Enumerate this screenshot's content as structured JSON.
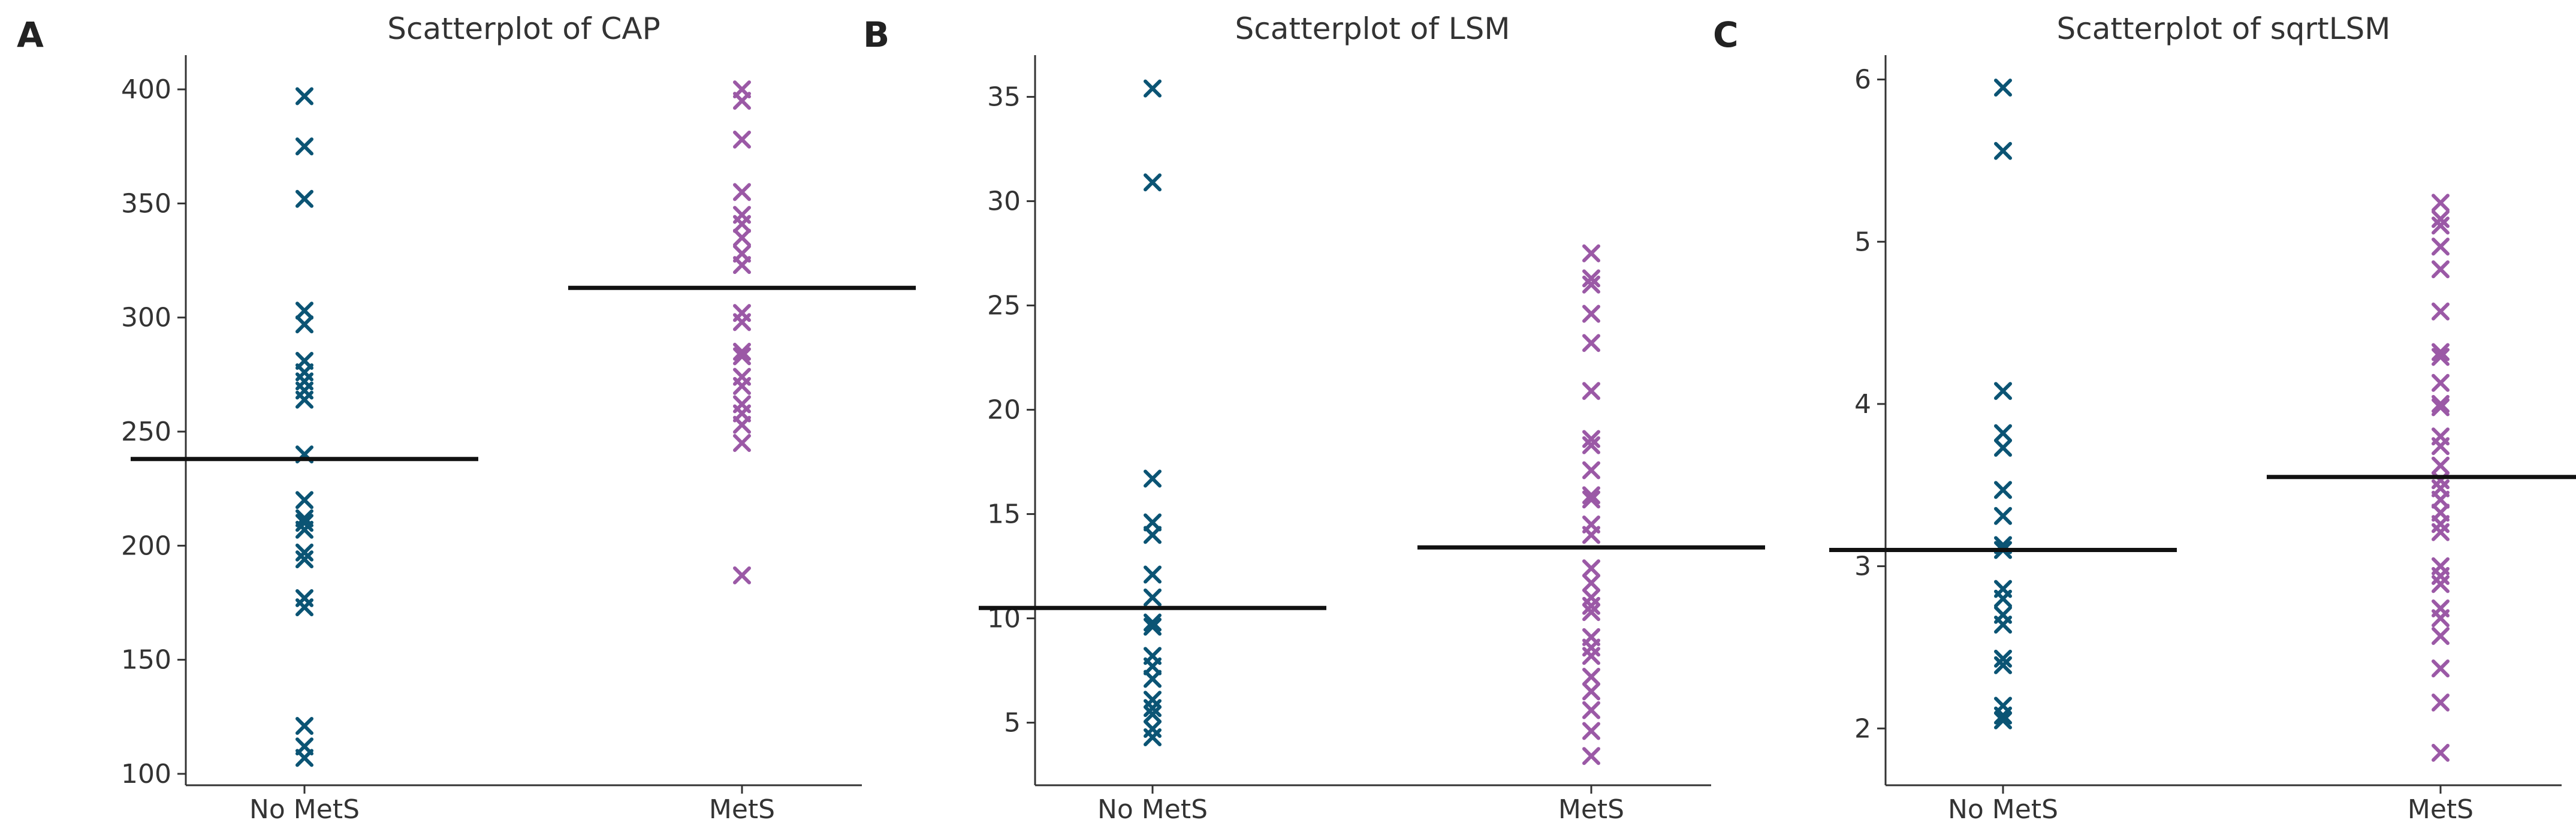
{
  "chart_data": [
    {
      "type": "scatter",
      "panel_label": "A",
      "title": "Scatterplot of CAP",
      "xlabel": "",
      "ylabel": "",
      "categories": [
        "No MetS",
        "MetS"
      ],
      "ylim": [
        95,
        415
      ],
      "yticks": [
        100,
        150,
        200,
        250,
        300,
        350,
        400
      ],
      "grid": false,
      "marker": "x",
      "series": [
        {
          "category": "No MetS",
          "color": "#0b5474",
          "values": [
            397,
            375,
            352,
            303,
            297,
            281,
            276,
            272,
            268,
            264,
            240,
            220,
            212,
            210,
            207,
            197,
            194,
            177,
            173,
            121,
            112,
            107
          ],
          "mean": 238
        },
        {
          "category": "MetS",
          "color": "#9b59a6",
          "values": [
            400,
            395,
            378,
            355,
            345,
            341,
            335,
            328,
            323,
            302,
            298,
            285,
            283,
            274,
            270,
            262,
            258,
            253,
            245,
            187
          ],
          "mean": 313
        }
      ]
    },
    {
      "type": "scatter",
      "panel_label": "B",
      "title": "Scatterplot of LSM",
      "xlabel": "",
      "ylabel": "",
      "categories": [
        "No MetS",
        "MetS"
      ],
      "ylim": [
        2,
        37
      ],
      "yticks": [
        5,
        10,
        15,
        20,
        25,
        30,
        35
      ],
      "grid": false,
      "marker": "x",
      "series": [
        {
          "category": "No MetS",
          "color": "#0b5474",
          "values": [
            35.4,
            30.9,
            16.7,
            14.6,
            14.0,
            12.1,
            11.0,
            9.8,
            9.6,
            8.2,
            7.7,
            7.1,
            6.1,
            5.7,
            5.4,
            4.7,
            4.3
          ],
          "mean": 10.5
        },
        {
          "category": "MetS",
          "color": "#9b59a6",
          "values": [
            27.5,
            26.3,
            26.0,
            24.6,
            23.2,
            20.9,
            18.6,
            18.3,
            17.1,
            15.9,
            15.7,
            14.5,
            14.0,
            12.4,
            11.7,
            11.0,
            10.6,
            10.3,
            9.1,
            8.6,
            8.2,
            7.2,
            6.5,
            5.6,
            4.6,
            3.4
          ],
          "mean": 13.4
        }
      ]
    },
    {
      "type": "scatter",
      "panel_label": "C",
      "title": "Scatterplot of sqrtLSM",
      "xlabel": "",
      "ylabel": "",
      "categories": [
        "No MetS",
        "MetS"
      ],
      "ylim": [
        1.65,
        6.15
      ],
      "yticks": [
        2,
        3,
        4,
        5,
        6
      ],
      "grid": false,
      "marker": "x",
      "series": [
        {
          "category": "No MetS",
          "color": "#0b5474",
          "values": [
            5.95,
            5.56,
            4.08,
            3.82,
            3.73,
            3.47,
            3.31,
            3.13,
            3.1,
            2.86,
            2.8,
            2.7,
            2.64,
            2.43,
            2.39,
            2.14,
            2.08,
            2.05
          ],
          "mean": 3.1
        },
        {
          "category": "MetS",
          "color": "#9b59a6",
          "values": [
            5.24,
            5.14,
            5.1,
            4.97,
            4.83,
            4.57,
            4.32,
            4.29,
            4.13,
            4.0,
            3.98,
            3.8,
            3.74,
            3.62,
            3.53,
            3.48,
            3.41,
            3.33,
            3.26,
            3.21,
            3.0,
            2.94,
            2.89,
            2.74,
            2.68,
            2.57,
            2.37,
            2.16,
            1.85
          ],
          "mean": 3.55
        }
      ]
    }
  ]
}
